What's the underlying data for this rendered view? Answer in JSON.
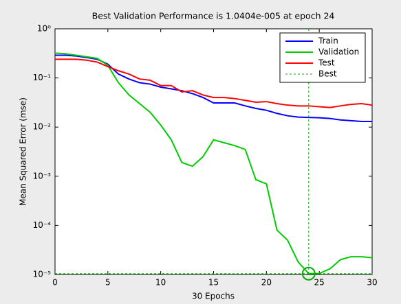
{
  "chart_data": {
    "type": "line",
    "title": "Best Validation Performance is 1.0404e-005 at epoch 24",
    "xlabel": "30 Epochs",
    "ylabel": "Mean Squared Error  (mse)",
    "x": [
      0,
      1,
      2,
      3,
      4,
      5,
      6,
      7,
      8,
      9,
      10,
      11,
      12,
      13,
      14,
      15,
      16,
      17,
      18,
      19,
      20,
      21,
      22,
      23,
      24,
      25,
      26,
      27,
      28,
      29,
      30
    ],
    "series": [
      {
        "name": "Train",
        "color": "#0000ff",
        "values": [
          0.29,
          0.29,
          0.28,
          0.26,
          0.24,
          0.19,
          0.12,
          0.095,
          0.08,
          0.075,
          0.065,
          0.06,
          0.055,
          0.048,
          0.04,
          0.031,
          0.031,
          0.031,
          0.027,
          0.024,
          0.022,
          0.019,
          0.017,
          0.016,
          0.0157,
          0.0155,
          0.015,
          0.014,
          0.0135,
          0.013,
          0.013
        ]
      },
      {
        "name": "Validation",
        "color": "#00cc00",
        "values": [
          0.32,
          0.31,
          0.29,
          0.27,
          0.25,
          0.18,
          0.08,
          0.045,
          0.03,
          0.02,
          0.011,
          0.0055,
          0.0019,
          0.0016,
          0.0025,
          0.0055,
          0.0048,
          0.0042,
          0.0035,
          0.00085,
          0.0007,
          8e-05,
          5e-05,
          1.8e-05,
          1.04e-05,
          1.05e-05,
          1.3e-05,
          2e-05,
          2.3e-05,
          2.3e-05,
          2.2e-05
        ]
      },
      {
        "name": "Test",
        "color": "#ff0000",
        "values": [
          0.24,
          0.24,
          0.24,
          0.23,
          0.21,
          0.17,
          0.14,
          0.12,
          0.095,
          0.09,
          0.07,
          0.07,
          0.052,
          0.055,
          0.045,
          0.04,
          0.04,
          0.038,
          0.035,
          0.032,
          0.033,
          0.03,
          0.028,
          0.027,
          0.027,
          0.026,
          0.025,
          0.027,
          0.029,
          0.03,
          0.028
        ]
      }
    ],
    "best": {
      "name": "Best",
      "color": "#00aa00",
      "x": 24,
      "y": 1.0404e-05
    },
    "xlim": [
      0,
      30
    ],
    "xticks": [
      0,
      5,
      10,
      15,
      20,
      25,
      30
    ],
    "ylim": [
      1e-05,
      1
    ],
    "yticks": [
      {
        "value": 1e-05,
        "label": "10⁻⁵"
      },
      {
        "value": 0.0001,
        "label": "10⁻⁴"
      },
      {
        "value": 0.001,
        "label": "10⁻³"
      },
      {
        "value": 0.01,
        "label": "10⁻²"
      },
      {
        "value": 0.1,
        "label": "10⁻¹"
      },
      {
        "value": 1,
        "label": "10⁰"
      }
    ],
    "log_y": true,
    "legend": "upper right"
  }
}
